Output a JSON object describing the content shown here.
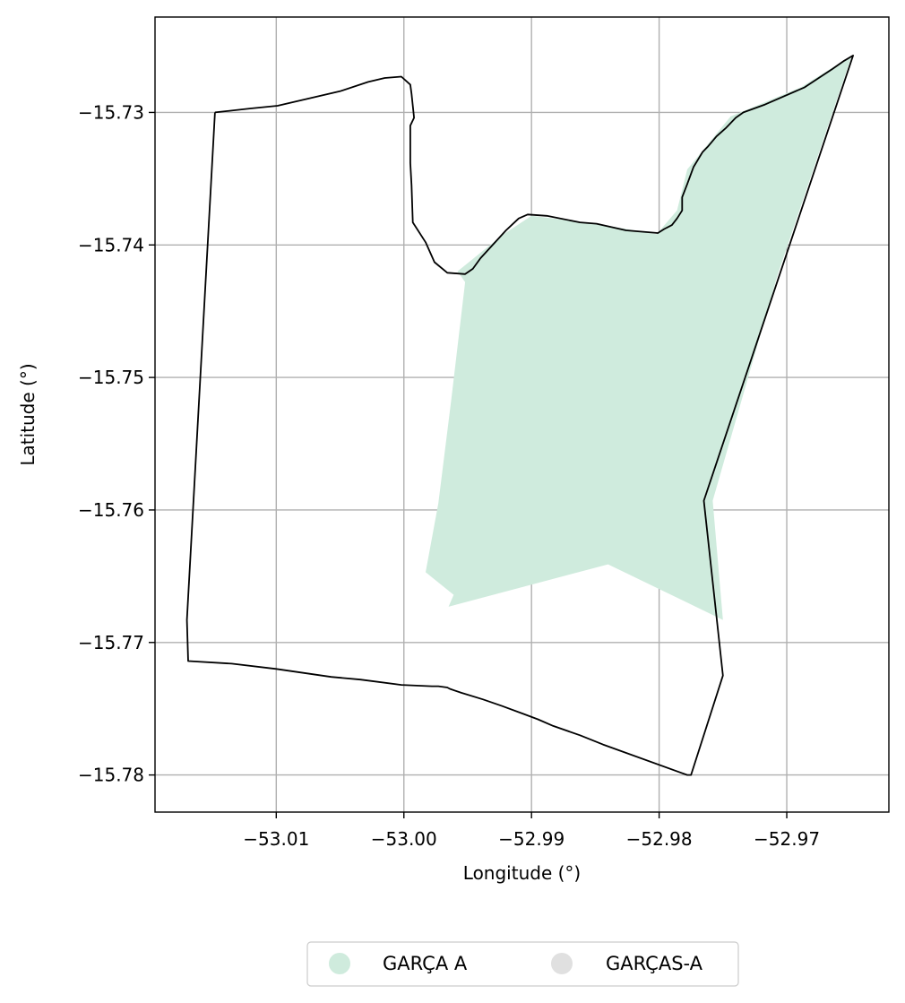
{
  "chart_data": {
    "type": "map",
    "xlabel": "Longitude (°)",
    "ylabel": "Latitude (°)",
    "xlim": [
      -53.0195,
      -52.962
    ],
    "ylim": [
      -15.7828,
      -15.7228
    ],
    "xticks": [
      -53.01,
      -53.0,
      -52.99,
      -52.98,
      -52.97
    ],
    "yticks": [
      -15.73,
      -15.74,
      -15.75,
      -15.76,
      -15.77,
      -15.78
    ],
    "xtick_labels": [
      "−53.01",
      "−53.00",
      "−52.99",
      "−52.98",
      "−52.97"
    ],
    "ytick_labels": [
      "−15.73",
      "−15.74",
      "−15.75",
      "−15.76",
      "−15.77",
      "−15.78"
    ],
    "grid": true,
    "legend_placement": "bottom-center",
    "legend": [
      {
        "label": "GARÇA A",
        "color": "#cfebdd"
      },
      {
        "label": "GARÇAS-A",
        "color": "#e0e0e0"
      }
    ],
    "filled_region": {
      "label": "GARÇA A",
      "color": "#cfebdd",
      "points": [
        [
          -52.9958,
          -15.742
        ],
        [
          -52.9922,
          -15.7392
        ],
        [
          -52.99,
          -15.7378
        ],
        [
          -52.9849,
          -15.7384
        ],
        [
          -52.9802,
          -15.7392
        ],
        [
          -52.9786,
          -15.7374
        ],
        [
          -52.9778,
          -15.7343
        ],
        [
          -52.9744,
          -15.7303
        ],
        [
          -52.9689,
          -15.7281
        ],
        [
          -52.9649,
          -15.7257
        ],
        [
          -52.9707,
          -15.7422
        ],
        [
          -52.9758,
          -15.7593
        ],
        [
          -52.975,
          -15.7683
        ],
        [
          -52.984,
          -15.7641
        ],
        [
          -52.9965,
          -15.7673
        ],
        [
          -52.9961,
          -15.7664
        ],
        [
          -52.9983,
          -15.7647
        ],
        [
          -52.9973,
          -15.7595
        ],
        [
          -52.9963,
          -15.7518
        ],
        [
          -52.9952,
          -15.7428
        ]
      ]
    },
    "boundary": {
      "color": "#000000",
      "points": [
        [
          -53.0148,
          -15.73
        ],
        [
          -53.012,
          -15.7297
        ],
        [
          -53.0099,
          -15.7295
        ],
        [
          -53.005,
          -15.7284
        ],
        [
          -53.0028,
          -15.7277
        ],
        [
          -53.0015,
          -15.7274
        ],
        [
          -53.0002,
          -15.7273
        ],
        [
          -52.9995,
          -15.7279
        ],
        [
          -52.9994,
          -15.7286
        ],
        [
          -52.9992,
          -15.7304
        ],
        [
          -52.9995,
          -15.731
        ],
        [
          -52.9995,
          -15.7338
        ],
        [
          -52.9994,
          -15.7355
        ],
        [
          -52.9993,
          -15.7383
        ],
        [
          -52.9983,
          -15.7398
        ],
        [
          -52.9976,
          -15.7413
        ],
        [
          -52.9966,
          -15.7421
        ],
        [
          -52.9952,
          -15.7422
        ],
        [
          -52.9946,
          -15.7418
        ],
        [
          -52.994,
          -15.741
        ],
        [
          -52.992,
          -15.7389
        ],
        [
          -52.991,
          -15.738
        ],
        [
          -52.9903,
          -15.7377
        ],
        [
          -52.9888,
          -15.7378
        ],
        [
          -52.9862,
          -15.7383
        ],
        [
          -52.9849,
          -15.7384
        ],
        [
          -52.9826,
          -15.7389
        ],
        [
          -52.9801,
          -15.7391
        ],
        [
          -52.9796,
          -15.7388
        ],
        [
          -52.979,
          -15.7385
        ],
        [
          -52.9786,
          -15.738
        ],
        [
          -52.9782,
          -15.7374
        ],
        [
          -52.9782,
          -15.7364
        ],
        [
          -52.9778,
          -15.7354
        ],
        [
          -52.9773,
          -15.7341
        ],
        [
          -52.9766,
          -15.733
        ],
        [
          -52.9762,
          -15.7326
        ],
        [
          -52.9755,
          -15.7318
        ],
        [
          -52.9748,
          -15.7312
        ],
        [
          -52.974,
          -15.7304
        ],
        [
          -52.9734,
          -15.73
        ],
        [
          -52.9717,
          -15.7294
        ],
        [
          -52.9686,
          -15.7281
        ],
        [
          -52.9664,
          -15.7267
        ],
        [
          -52.9655,
          -15.7261
        ],
        [
          -52.9648,
          -15.7257
        ],
        [
          -52.9765,
          -15.7593
        ],
        [
          -52.975,
          -15.7725
        ],
        [
          -52.9775,
          -15.78
        ],
        [
          -52.9778,
          -15.78
        ],
        [
          -52.9844,
          -15.7777
        ],
        [
          -52.9862,
          -15.777
        ],
        [
          -52.9883,
          -15.7763
        ],
        [
          -52.9895,
          -15.7758
        ],
        [
          -52.9906,
          -15.7754
        ],
        [
          -52.9923,
          -15.7748
        ],
        [
          -52.9938,
          -15.7743
        ],
        [
          -52.9955,
          -15.7738
        ],
        [
          -52.9964,
          -15.7735
        ],
        [
          -52.9966,
          -15.7734
        ],
        [
          -52.9973,
          -15.7733
        ],
        [
          -52.9978,
          -15.7733
        ],
        [
          -53.0002,
          -15.7732
        ],
        [
          -53.0034,
          -15.7728
        ],
        [
          -53.0057,
          -15.7726
        ],
        [
          -53.01,
          -15.772
        ],
        [
          -53.0135,
          -15.7716
        ],
        [
          -53.0169,
          -15.7714
        ],
        [
          -53.017,
          -15.7683
        ],
        [
          -53.0148,
          -15.73
        ]
      ]
    }
  }
}
